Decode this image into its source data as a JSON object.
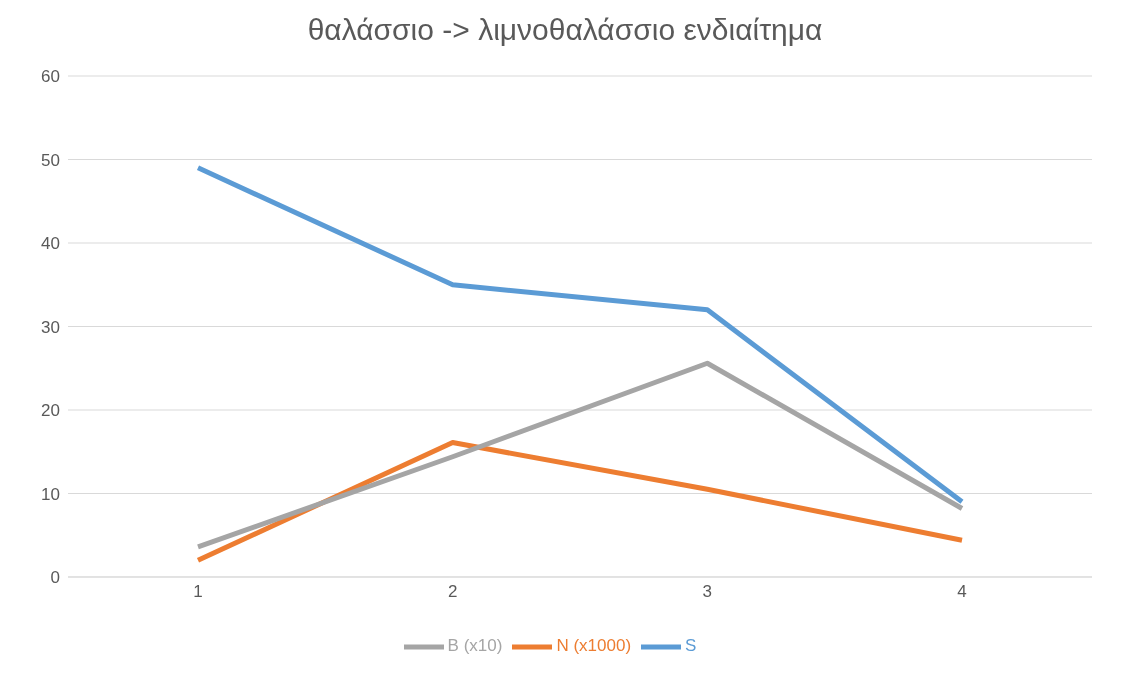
{
  "chart_data": {
    "type": "line",
    "title": "θαλάσσιο -> λιμνοθαλάσσιο ενδιαίτημα",
    "categories": [
      "1",
      "2",
      "3",
      "4"
    ],
    "series": [
      {
        "name": "S",
        "color": "#5b9bd5",
        "values": [
          49,
          35,
          32,
          9
        ]
      },
      {
        "name": "N (x1000)",
        "color": "#ed7d31",
        "values": [
          2,
          16.1,
          10.5,
          4.4
        ]
      },
      {
        "name": "B (x10)",
        "color": "#a5a5a5",
        "values": [
          3.6,
          14.4,
          25.6,
          8.2
        ]
      }
    ],
    "ylim": [
      0,
      60
    ],
    "yticks": [
      0,
      10,
      20,
      30,
      40,
      50,
      60
    ],
    "grid": "y",
    "legend": "bottom",
    "marker": "none",
    "line_style": "solid"
  }
}
